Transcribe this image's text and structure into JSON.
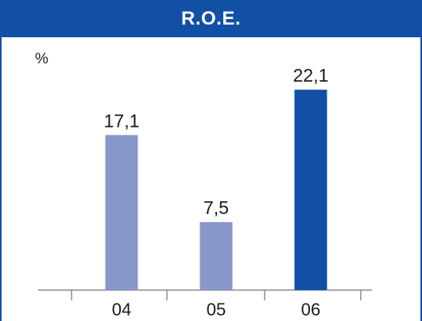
{
  "chart_data": {
    "type": "bar",
    "title": "R.O.E.",
    "unit": "%",
    "categories": [
      "04",
      "05",
      "06"
    ],
    "values": [
      17.1,
      7.5,
      22.1
    ],
    "value_labels": [
      "17,1",
      "7,5",
      "22,1"
    ],
    "colors": [
      "#8797c9",
      "#8797c9",
      "#1150a4"
    ],
    "ylim": [
      0,
      25
    ],
    "grid": false,
    "legend": "none"
  },
  "colors": {
    "header_bg": "#1150a4",
    "title_text": "#ffffff",
    "axis": "#555555"
  }
}
